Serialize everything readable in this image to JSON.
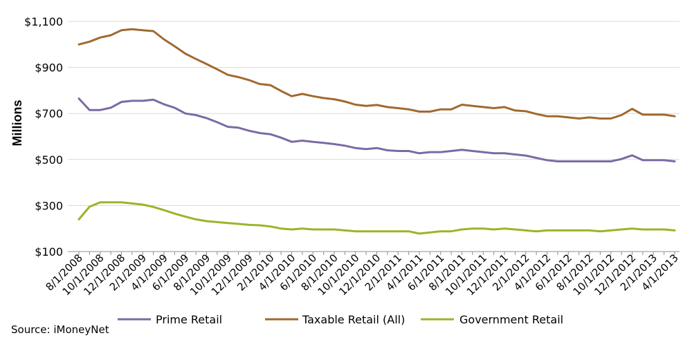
{
  "chart_data": {
    "type": "line",
    "title": "",
    "xlabel": "",
    "ylabel": "Millions",
    "ylim": [
      100,
      1100
    ],
    "yticks": [
      100,
      300,
      500,
      700,
      900,
      1100
    ],
    "ytick_labels": [
      "$100",
      "$300",
      "$500",
      "$700",
      "$900",
      "$1,100"
    ],
    "xtick_labels": [
      "8/1/2008",
      "10/1/2008",
      "12/1/2008",
      "2/1/2009",
      "4/1/2009",
      "6/1/2009",
      "8/1/2009",
      "10/1/2009",
      "12/1/2009",
      "2/1/2010",
      "4/1/2010",
      "6/1/2010",
      "8/1/2010",
      "10/1/2010",
      "12/1/2010",
      "2/1/2011",
      "4/1/2011",
      "6/1/2011",
      "8/1/2011",
      "10/1/2011",
      "12/1/2011",
      "2/1/2012",
      "4/1/2012",
      "6/1/2012",
      "8/1/2012",
      "10/1/2012",
      "12/1/2012",
      "2/1/2013",
      "4/1/2013"
    ],
    "grid": "horizontal",
    "legend_position": "bottom",
    "series": [
      {
        "name": "Prime Retail",
        "color": "#7b6aa6",
        "values": [
          765,
          715,
          715,
          725,
          750,
          755,
          755,
          760,
          740,
          725,
          700,
          693,
          680,
          662,
          642,
          638,
          625,
          615,
          610,
          595,
          577,
          582,
          577,
          572,
          567,
          560,
          550,
          545,
          550,
          540,
          537,
          537,
          527,
          532,
          532,
          537,
          542,
          537,
          532,
          527,
          527,
          522,
          517,
          507,
          497,
          492,
          492,
          492,
          492,
          492,
          492,
          502,
          518,
          497,
          497,
          497,
          492
        ]
      },
      {
        "name": "Taxable Retail (All)",
        "color": "#a0692f",
        "values": [
          1000,
          1012,
          1030,
          1040,
          1062,
          1066,
          1062,
          1058,
          1022,
          992,
          960,
          937,
          915,
          892,
          868,
          858,
          845,
          828,
          823,
          798,
          775,
          785,
          775,
          767,
          762,
          752,
          738,
          733,
          737,
          728,
          723,
          718,
          708,
          708,
          718,
          718,
          738,
          733,
          728,
          723,
          728,
          713,
          710,
          698,
          688,
          688,
          683,
          678,
          683,
          678,
          678,
          693,
          720,
          695,
          695,
          695,
          688
        ]
      },
      {
        "name": "Government Retail",
        "color": "#98b52a",
        "values": [
          240,
          295,
          314,
          314,
          314,
          309,
          304,
          294,
          280,
          265,
          252,
          240,
          232,
          228,
          224,
          220,
          216,
          214,
          209,
          200,
          196,
          200,
          196,
          196,
          196,
          192,
          188,
          188,
          188,
          188,
          188,
          188,
          178,
          183,
          188,
          188,
          196,
          200,
          200,
          196,
          200,
          196,
          192,
          188,
          192,
          192,
          192,
          192,
          192,
          188,
          192,
          196,
          200,
          196,
          196,
          196,
          192
        ]
      }
    ]
  },
  "source": "Source: iMoneyNet"
}
